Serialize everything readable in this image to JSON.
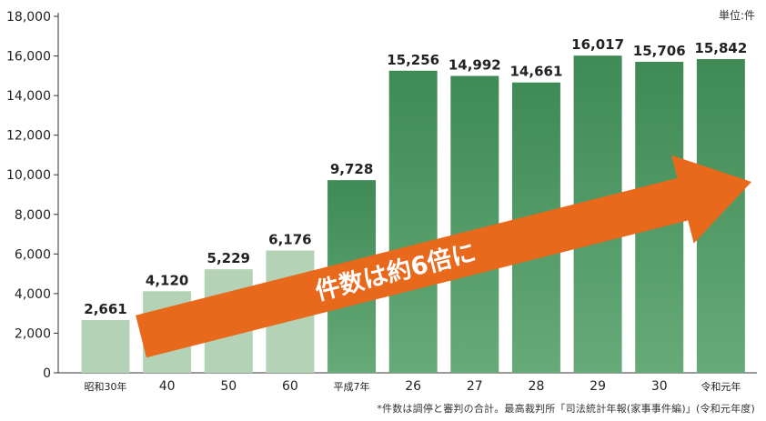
{
  "chart_data": {
    "type": "bar",
    "title": "",
    "unit_label": "単位:件",
    "categories": [
      "昭和30年",
      "40",
      "50",
      "60",
      "平成7年",
      "26",
      "27",
      "28",
      "29",
      "30",
      "令和元年"
    ],
    "values": [
      2661,
      4120,
      5229,
      6176,
      9728,
      15256,
      14992,
      14661,
      16017,
      15706,
      15842
    ],
    "value_labels": [
      "2,661",
      "4,120",
      "5,229",
      "6,176",
      "9,728",
      "15,256",
      "14,992",
      "14,661",
      "16,017",
      "15,706",
      "15,842"
    ],
    "y_ticks": [
      "0",
      "2,000",
      "4,000",
      "6,000",
      "8,000",
      "10,000",
      "12,000",
      "14,000",
      "16,000",
      "18,000"
    ],
    "ylim": [
      0,
      18000
    ],
    "grid": false,
    "colors": {
      "light_bar": "#b4d3b6",
      "dark_bar_top": "#3f8a55",
      "dark_bar_bottom": "#66aa78",
      "arrow": "#e8681c",
      "arrow_text": "#ffffff"
    },
    "bar_color_groups": [
      "light",
      "light",
      "light",
      "light",
      "dark",
      "dark",
      "dark",
      "dark",
      "dark",
      "dark",
      "dark"
    ],
    "annotation": "件数は約6倍に"
  },
  "footnote": "*件数は調停と審判の合計。最高裁判所「司法統計年報(家事事件編)」(令和元年度)"
}
